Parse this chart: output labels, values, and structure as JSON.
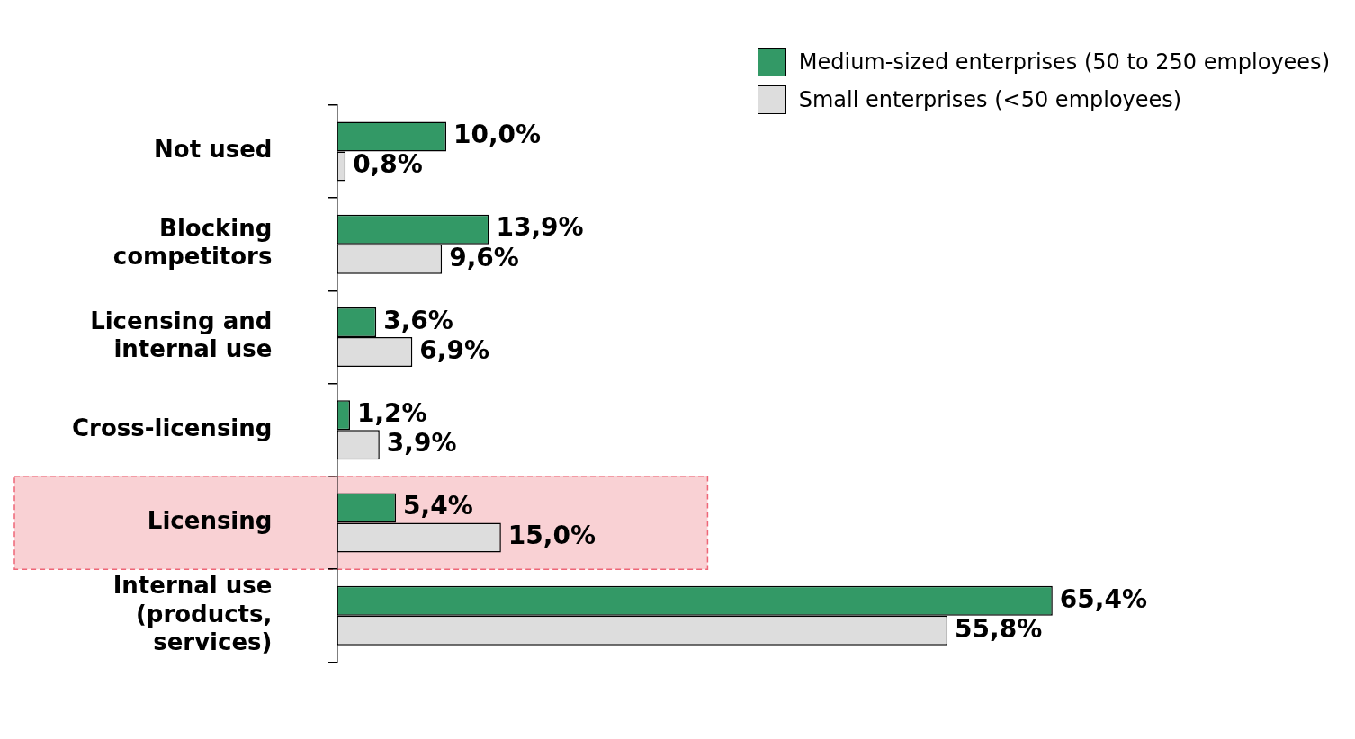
{
  "chart_data": {
    "type": "bar",
    "orientation": "horizontal",
    "categories": [
      "Not used",
      "Blocking competitors",
      "Licensing and internal use",
      "Cross-licensing",
      "Licensing",
      "Internal use (products, services)"
    ],
    "series": [
      {
        "name": "Medium-sized enterprises (50 to 250 employees)",
        "color": "#339966",
        "values": [
          10.0,
          13.9,
          3.6,
          1.2,
          5.4,
          65.4
        ],
        "value_labels": [
          "10,0%",
          "13,9%",
          "3,6%",
          "1,2%",
          "5,4%",
          "65,4%"
        ]
      },
      {
        "name": "Small enterprises (<50 employees)",
        "color": "#dddddd",
        "values": [
          0.8,
          9.6,
          6.9,
          3.9,
          15.0,
          55.8
        ],
        "value_labels": [
          "0,8%",
          "9,6%",
          "6,9%",
          "3,9%",
          "15,0%",
          "55,8%"
        ]
      }
    ],
    "bands": [
      {
        "axis": "y",
        "from": "Licensing",
        "to": "Licensing",
        "color": "#f7c6c9"
      }
    ],
    "legend": "top right",
    "grid": false
  }
}
